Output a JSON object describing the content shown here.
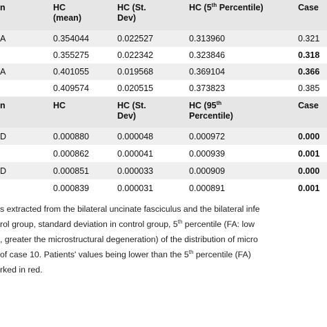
{
  "table": {
    "header1": {
      "col0": "n",
      "col1_line1": "HC",
      "col1_line2": "(mean)",
      "col2_line1": "HC (St.",
      "col2_line2": "Dev)",
      "col3_pre": "HC (5",
      "col3_sup": "th",
      "col3_post": " Percentile)",
      "col4": "Case"
    },
    "rows1": [
      {
        "label": "A",
        "mean": "0.354044",
        "sd": "0.022527",
        "pct": "0.313960",
        "case": "0.321"
      },
      {
        "label": "",
        "mean": "0.355275",
        "sd": "0.022342",
        "pct": "0.323846",
        "case": "0.318"
      },
      {
        "label": "A",
        "mean": "0.401055",
        "sd": "0.019568",
        "pct": "0.369104",
        "case": "0.366"
      },
      {
        "label": "",
        "mean": "0.409574",
        "sd": "0.020515",
        "pct": "0.373823",
        "case": "0.385"
      }
    ],
    "header2": {
      "col0": "n",
      "col1": "HC",
      "col2_line1": "HC (St.",
      "col2_line2": "Dev)",
      "col3_pre": "HC (95",
      "col3_sup": "th",
      "col3_line2": "Percentile)",
      "col4": "Case"
    },
    "rows2": [
      {
        "label": "D",
        "mean": "0.000880",
        "sd": "0.000048",
        "pct": "0.000972",
        "case": "0.000"
      },
      {
        "label": "",
        "mean": "0.000862",
        "sd": "0.000041",
        "pct": "0.000939",
        "case": "0.001"
      },
      {
        "label": "D",
        "mean": "0.000851",
        "sd": "0.000033",
        "pct": "0.000909",
        "case": "0.000"
      },
      {
        "label": "",
        "mean": "0.000839",
        "sd": "0.000031",
        "pct": "0.000891",
        "case": "0.001"
      }
    ]
  },
  "caption": {
    "line1": "s extracted from the bilateral uncinate fasciculus and the bilateral infe",
    "line2_pre": "rol group, standard deviation in control group, 5",
    "line2_sup": "th",
    "line2_post": " percentile (FA: low",
    "line3": ", greater the microstructural degeneration) of the distribution of micro",
    "line4_pre": "of case 10. Patients' values being lower than the 5",
    "line4_sup": "th",
    "line4_post": " percentile (FA)",
    "line5": "rked in red."
  }
}
